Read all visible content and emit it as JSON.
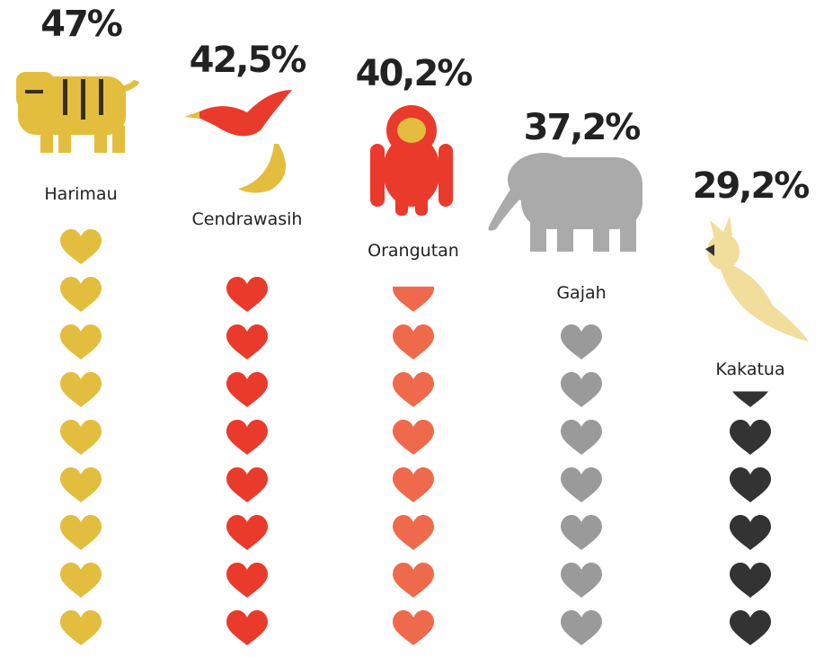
{
  "chart_data": {
    "type": "pictogram",
    "categories": [
      "Harimau",
      "Cendrawasih",
      "Orangutan",
      "Gajah",
      "Kakatua"
    ],
    "values": [
      47,
      42.5,
      40.2,
      37.2,
      29.2
    ],
    "value_labels": [
      "47%",
      "42,5%",
      "40,2%",
      "37,2%",
      "29,2%"
    ],
    "colors": [
      "#e3bd3e",
      "#ea3a2c",
      "#ef6a4c",
      "#9a9a9a",
      "#333333"
    ]
  }
}
